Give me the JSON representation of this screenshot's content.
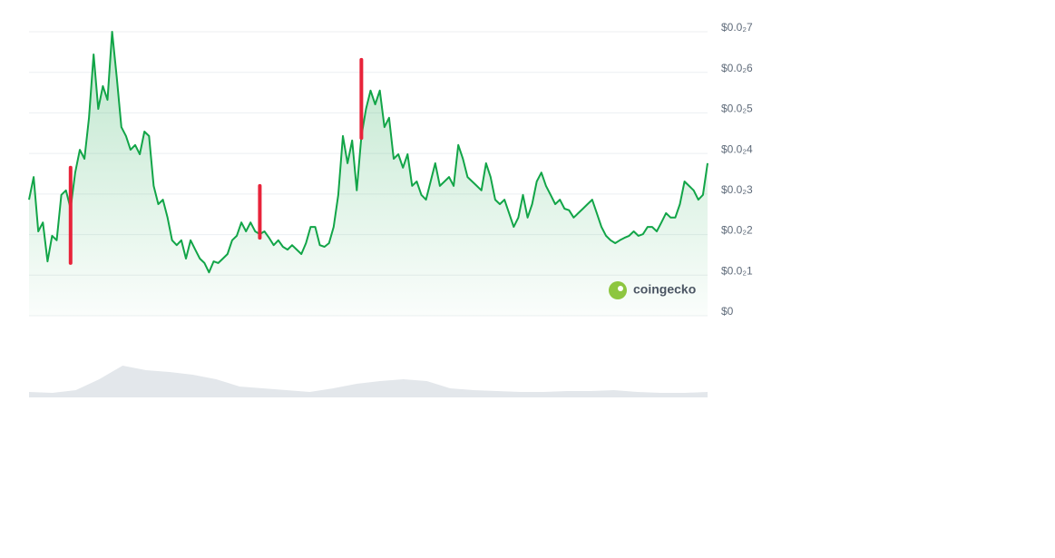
{
  "chart_data": {
    "type": "line",
    "values": [
      0.00286,
      0.00342,
      0.00208,
      0.0023,
      0.00134,
      0.00197,
      0.00186,
      0.00298,
      0.00309,
      0.00264,
      0.00353,
      0.00409,
      0.00387,
      0.00488,
      0.00644,
      0.0051,
      0.00566,
      0.00532,
      0.007,
      0.00588,
      0.00465,
      0.00443,
      0.00409,
      0.00421,
      0.00398,
      0.00454,
      0.00443,
      0.0032,
      0.00275,
      0.00286,
      0.00242,
      0.00186,
      0.00174,
      0.00186,
      0.00141,
      0.00186,
      0.00163,
      0.00141,
      0.0013,
      0.00107,
      0.00134,
      0.0013,
      0.00141,
      0.00152,
      0.00186,
      0.00197,
      0.0023,
      0.00208,
      0.0023,
      0.00208,
      0.00201,
      0.00208,
      0.00192,
      0.00174,
      0.00186,
      0.0017,
      0.00163,
      0.00174,
      0.00163,
      0.00152,
      0.00179,
      0.00219,
      0.00219,
      0.00174,
      0.0017,
      0.00179,
      0.00219,
      0.00298,
      0.00443,
      0.00376,
      0.00432,
      0.00309,
      0.00443,
      0.0051,
      0.00555,
      0.00521,
      0.00555,
      0.00465,
      0.00488,
      0.00387,
      0.00398,
      0.00365,
      0.00398,
      0.0032,
      0.00331,
      0.00298,
      0.00286,
      0.00331,
      0.00376,
      0.0032,
      0.00331,
      0.00342,
      0.0032,
      0.00421,
      0.00387,
      0.00342,
      0.00331,
      0.0032,
      0.00309,
      0.00376,
      0.00342,
      0.00286,
      0.00275,
      0.00286,
      0.00253,
      0.00219,
      0.00242,
      0.00298,
      0.00242,
      0.00275,
      0.00331,
      0.00353,
      0.0032,
      0.00298,
      0.00275,
      0.00286,
      0.00264,
      0.0026,
      0.00242,
      0.00253,
      0.00264,
      0.00275,
      0.00286,
      0.00253,
      0.00219,
      0.00197,
      0.00186,
      0.00179,
      0.00186,
      0.00192,
      0.00197,
      0.00208,
      0.00197,
      0.00201,
      0.00219,
      0.00219,
      0.00208,
      0.0023,
      0.00253,
      0.00242,
      0.00242,
      0.00275,
      0.00331,
      0.0032,
      0.00309,
      0.00286,
      0.00298,
      0.00376
    ],
    "color": "#12a548",
    "spikes": {
      "color": "#e8233a",
      "items": [
        {
          "x": 9,
          "high": 0.00365,
          "low": 0.0013
        },
        {
          "x": 50,
          "high": 0.0032,
          "low": 0.00192
        },
        {
          "x": 72,
          "high": 0.00631,
          "low": 0.00438
        }
      ]
    },
    "volume": {
      "color": "#e3e7eb",
      "values": [
        6,
        5,
        8,
        20,
        35,
        30,
        28,
        25,
        20,
        12,
        10,
        8,
        6,
        10,
        15,
        18,
        20,
        18,
        10,
        8,
        7,
        6,
        6,
        7,
        7,
        8,
        6,
        5,
        5,
        6
      ],
      "ylim": [
        0,
        50
      ]
    },
    "ylim": [
      0,
      0.007
    ],
    "yticks": [
      {
        "value": 0,
        "label": "$0"
      },
      {
        "value": 0.001,
        "label": "$0.0₂1"
      },
      {
        "value": 0.002,
        "label": "$0.0₂2"
      },
      {
        "value": 0.003,
        "label": "$0.0₂3"
      },
      {
        "value": 0.004,
        "label": "$0.0₂4"
      },
      {
        "value": 0.005,
        "label": "$0.0₂5"
      },
      {
        "value": 0.006,
        "label": "$0.0₂6"
      },
      {
        "value": 0.007,
        "label": "$0.0₂7"
      }
    ],
    "grid": true,
    "watermark": "coingecko"
  }
}
